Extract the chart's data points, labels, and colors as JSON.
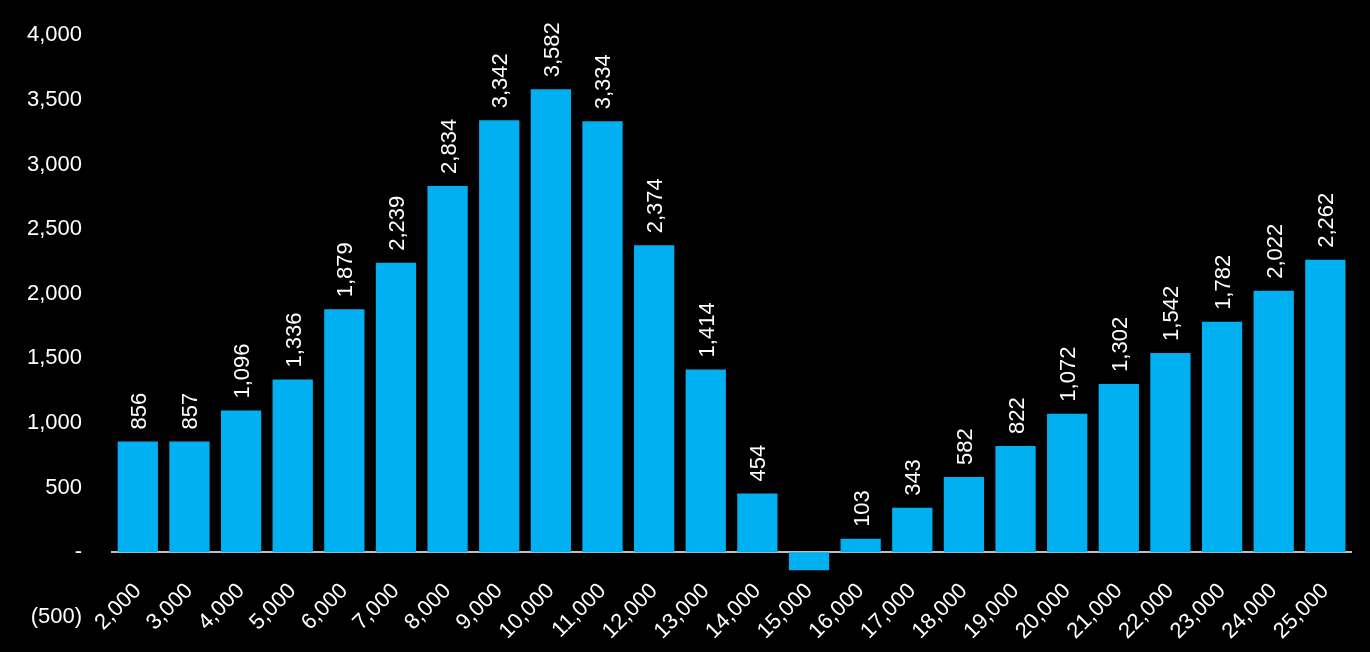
{
  "chart_data": {
    "type": "bar",
    "categories": [
      "2,000",
      "3,000",
      "4,000",
      "5,000",
      "6,000",
      "7,000",
      "8,000",
      "9,000",
      "10,000",
      "11,000",
      "12,000",
      "13,000",
      "14,000",
      "15,000",
      "16,000",
      "17,000",
      "18,000",
      "19,000",
      "20,000",
      "21,000",
      "22,000",
      "23,000",
      "24,000",
      "25,000"
    ],
    "values": [
      856,
      857,
      1096,
      1336,
      1879,
      2239,
      2834,
      3342,
      3582,
      3334,
      2374,
      1414,
      454,
      -140,
      103,
      343,
      582,
      822,
      1072,
      1302,
      1542,
      1782,
      2022,
      2262
    ],
    "value_labels": [
      "856",
      "857",
      "1,096",
      "1,336",
      "1,879",
      "2,239",
      "2,834",
      "3,342",
      "3,582",
      "3,334",
      "2,374",
      "1,414",
      "454",
      null,
      "103",
      "343",
      "582",
      "822",
      "1,072",
      "1,302",
      "1,542",
      "1,782",
      "2,022",
      "2,262"
    ],
    "color": "#00b0f0",
    "ylim": [
      -500,
      4000
    ],
    "yticks": [
      {
        "value": -500,
        "label": "(500)"
      },
      {
        "value": 0,
        "label": "-"
      },
      {
        "value": 500,
        "label": "500"
      },
      {
        "value": 1000,
        "label": "1,000"
      },
      {
        "value": 1500,
        "label": "1,500"
      },
      {
        "value": 2000,
        "label": "2,000"
      },
      {
        "value": 2500,
        "label": "2,500"
      },
      {
        "value": 3000,
        "label": "3,000"
      },
      {
        "value": 3500,
        "label": "3,500"
      },
      {
        "value": 4000,
        "label": "4,000"
      }
    ],
    "grid": false,
    "legend": false
  }
}
